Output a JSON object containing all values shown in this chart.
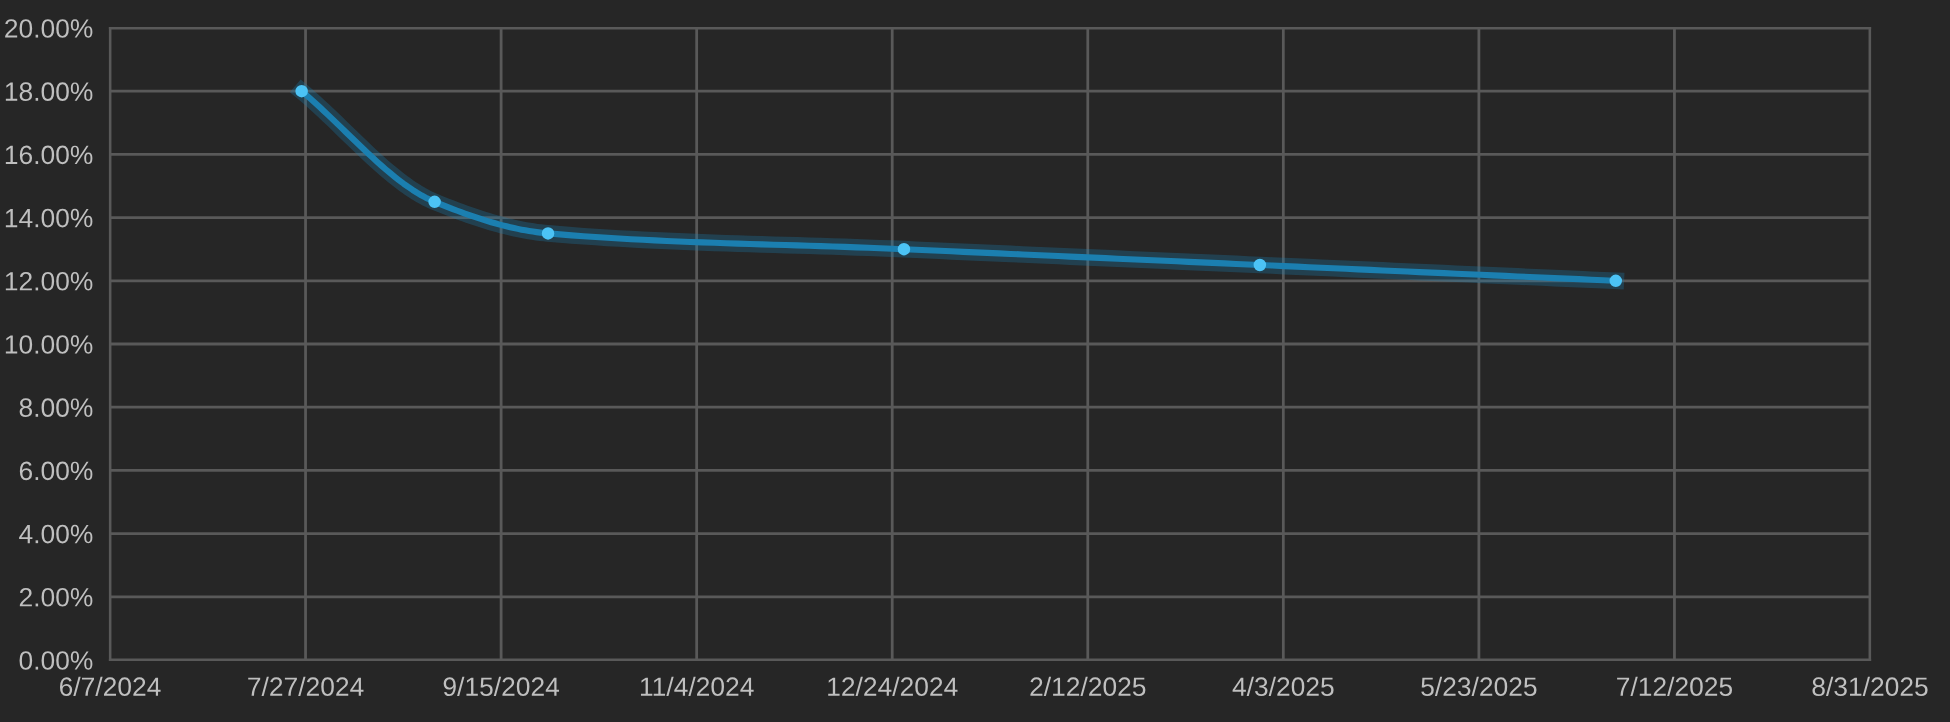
{
  "chart_data": {
    "type": "line",
    "x": [
      "2024-07-26",
      "2024-08-29",
      "2024-09-27",
      "2024-12-27",
      "2025-03-28",
      "2025-06-27"
    ],
    "series": [
      {
        "color": "#1b7fb0",
        "values": [
          18,
          14.5,
          13.5,
          13,
          12.5,
          12
        ]
      }
    ],
    "xlim": [
      "2024-06-07",
      "2025-08-31"
    ],
    "xticks": [
      {
        "value": "2024-06-07",
        "label": "6/7/2024"
      },
      {
        "value": "2024-07-27",
        "label": "7/27/2024"
      },
      {
        "value": "2024-09-15",
        "label": "9/15/2024"
      },
      {
        "value": "2024-11-04",
        "label": "11/4/2024"
      },
      {
        "value": "2024-12-24",
        "label": "12/24/2024"
      },
      {
        "value": "2025-02-12",
        "label": "2/12/2025"
      },
      {
        "value": "2025-04-03",
        "label": "4/3/2025"
      },
      {
        "value": "2025-05-23",
        "label": "5/23/2025"
      },
      {
        "value": "2025-07-12",
        "label": "7/12/2025"
      },
      {
        "value": "2025-08-31",
        "label": "8/31/2025"
      }
    ],
    "ylim": [
      0,
      20
    ],
    "yticks": [
      {
        "value": 0,
        "label": "0.00%"
      },
      {
        "value": 2,
        "label": "2.00%"
      },
      {
        "value": 4,
        "label": "4.00%"
      },
      {
        "value": 6,
        "label": "6.00%"
      },
      {
        "value": 8,
        "label": "8.00%"
      },
      {
        "value": 10,
        "label": "10.00%"
      },
      {
        "value": 12,
        "label": "12.00%"
      },
      {
        "value": 14,
        "label": "14.00%"
      },
      {
        "value": 16,
        "label": "16.00%"
      },
      {
        "value": 18,
        "label": "18.00%"
      },
      {
        "value": 20,
        "label": "20.00%"
      }
    ],
    "grid": true,
    "marker": "circle",
    "line_style": "solid"
  }
}
